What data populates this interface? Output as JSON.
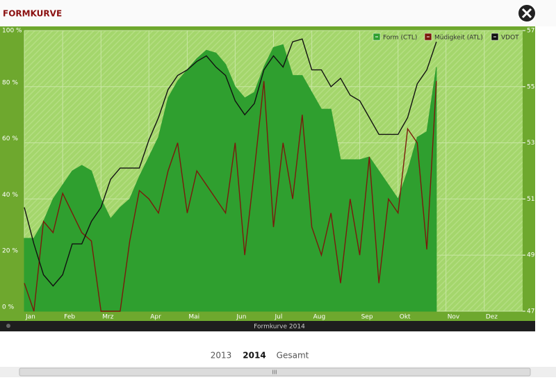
{
  "ui": {
    "header": {
      "title": "FORMKURVE"
    },
    "tabs": [
      "2013",
      "2014",
      "Gesamt"
    ],
    "active_tab": 1
  },
  "chart_data": {
    "type": "area-line",
    "title": "Formkurve 2014",
    "categories": [
      "Jan",
      null,
      null,
      null,
      "Feb",
      null,
      null,
      null,
      "Mrz",
      null,
      null,
      null,
      null,
      "Apr",
      null,
      null,
      null,
      "Mai",
      null,
      null,
      null,
      null,
      "Jun",
      null,
      null,
      null,
      "Jul",
      null,
      null,
      null,
      "Aug",
      null,
      null,
      null,
      null,
      "Sep",
      null,
      null,
      null,
      "Okt",
      null,
      null,
      null,
      null,
      "Nov",
      null,
      null,
      null,
      "Dez",
      null,
      null,
      null
    ],
    "series": [
      {
        "name": "Form (CTL)",
        "color": "#2f9f2f",
        "kind": "area",
        "axis": "y",
        "values": [
          26,
          26,
          32,
          40,
          45,
          50,
          52,
          50,
          40,
          33,
          37,
          40,
          48,
          55,
          62,
          76,
          82,
          86,
          90,
          93,
          92,
          88,
          80,
          76,
          78,
          87,
          94,
          95,
          84,
          84,
          78,
          72,
          72,
          54,
          54,
          54,
          55,
          50,
          45,
          40,
          50,
          62,
          64,
          87,
          null,
          null,
          null,
          null,
          null,
          null,
          null,
          null
        ]
      },
      {
        "name": "Müdigkeit (ATL)",
        "color": "#7a1a0c",
        "kind": "line",
        "axis": "y",
        "values": [
          10,
          0,
          32,
          28,
          42,
          35,
          28,
          25,
          0,
          0,
          0,
          25,
          43,
          40,
          35,
          50,
          60,
          35,
          50,
          45,
          40,
          35,
          60,
          20,
          50,
          82,
          30,
          60,
          40,
          70,
          30,
          20,
          35,
          10,
          40,
          20,
          55,
          10,
          40,
          35,
          65,
          60,
          22,
          82,
          null,
          null,
          null,
          null,
          null,
          null,
          null,
          null
        ]
      },
      {
        "name": "VDOT",
        "color": "#111111",
        "kind": "line",
        "axis": "y2",
        "values": [
          50.7,
          49.4,
          48.3,
          47.9,
          48.3,
          49.4,
          49.4,
          50.2,
          50.7,
          51.7,
          52.1,
          52.1,
          52.1,
          53.1,
          53.9,
          54.9,
          55.4,
          55.6,
          55.9,
          56.1,
          55.7,
          55.4,
          54.5,
          54.0,
          54.4,
          55.6,
          56.1,
          55.7,
          56.6,
          56.7,
          55.6,
          55.6,
          55.0,
          55.3,
          54.7,
          54.5,
          53.9,
          53.3,
          53.3,
          53.3,
          53.9,
          55.1,
          55.6,
          56.6,
          null,
          null,
          null,
          null,
          null,
          null,
          null,
          null
        ]
      }
    ],
    "ylim": [
      0,
      100
    ],
    "yticks": [
      {
        "value": 0,
        "label": "0 %"
      },
      {
        "value": 20,
        "label": "20 %"
      },
      {
        "value": 40,
        "label": "40 %"
      },
      {
        "value": 60,
        "label": "60 %"
      },
      {
        "value": 80,
        "label": "80 %"
      },
      {
        "value": 100,
        "label": "100 %"
      }
    ],
    "y2lim": [
      47,
      57
    ],
    "y2ticks": [
      {
        "value": 47,
        "label": "47.0"
      },
      {
        "value": 49,
        "label": "49.0"
      },
      {
        "value": 51,
        "label": "51.0"
      },
      {
        "value": 53,
        "label": "53.0"
      },
      {
        "value": 55,
        "label": "55.0"
      },
      {
        "value": 57,
        "label": "57.0"
      }
    ],
    "grid": true
  }
}
